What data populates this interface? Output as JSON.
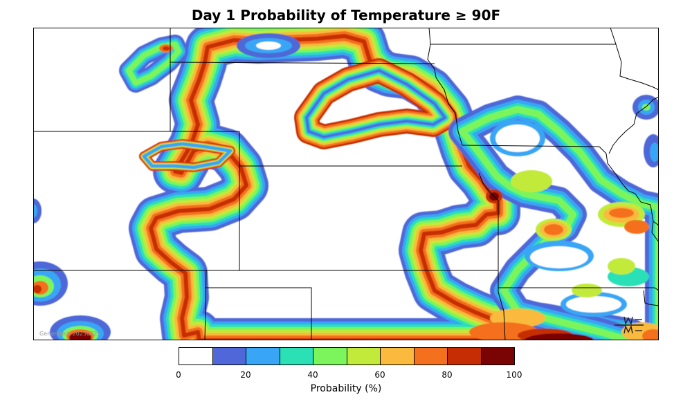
{
  "title": "Day 1 Probability of Temperature ≥ 90F",
  "generated_text": "Generated: 20250625",
  "legend": {
    "title": "Probability (%)",
    "ticks": [
      "0",
      "20",
      "40",
      "60",
      "80",
      "100"
    ],
    "bins": [
      {
        "range": "0-10",
        "color": "#ffffff"
      },
      {
        "range": "10-20",
        "color": "#4f67d8"
      },
      {
        "range": "20-30",
        "color": "#38a6f5"
      },
      {
        "range": "30-40",
        "color": "#2ce0b6"
      },
      {
        "range": "40-50",
        "color": "#7cf55c"
      },
      {
        "range": "50-60",
        "color": "#c2ea3a"
      },
      {
        "range": "60-70",
        "color": "#f9ba3d"
      },
      {
        "range": "70-80",
        "color": "#f46f1e"
      },
      {
        "range": "80-90",
        "color": "#c62d05"
      },
      {
        "range": "90-100",
        "color": "#7a0403"
      }
    ]
  },
  "colors": {
    "level_10": "#4f67d8",
    "level_20": "#38a6f5",
    "level_30": "#2ce0b6",
    "level_40": "#7cf55c",
    "level_50": "#c2ea3a",
    "level_60": "#f9ba3d",
    "level_70": "#f46f1e",
    "level_80": "#c62d05",
    "level_90": "#7a0403",
    "border": "#000000"
  },
  "logo_icon": "wx-logo-icon"
}
